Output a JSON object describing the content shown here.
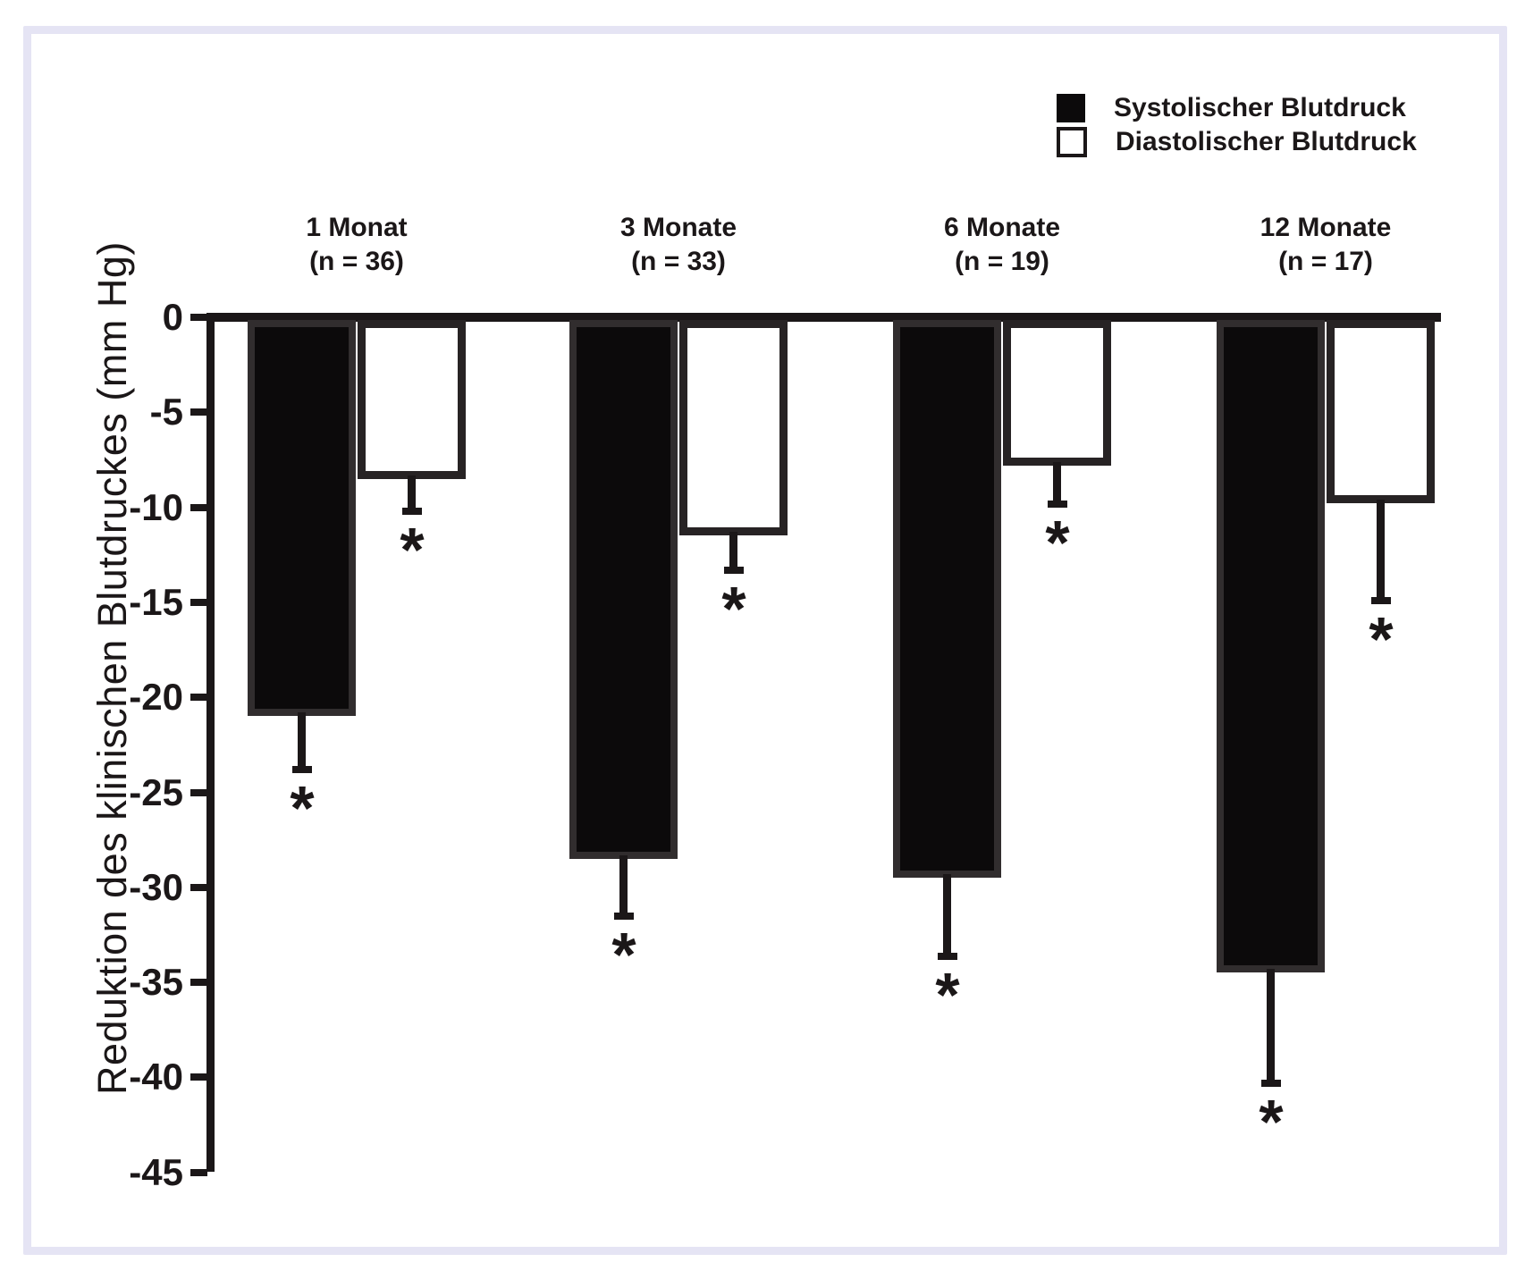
{
  "figure": {
    "ylabel": "Reduktion des klinischen Blutdruckes (mm Hg)",
    "legend": [
      {
        "label": "Systolischer Blutdruck",
        "swatch": "black"
      },
      {
        "label": "Diastolischer Blutdruck",
        "swatch": "white"
      }
    ]
  },
  "chart_data": {
    "type": "bar",
    "title": "",
    "ylabel": "Reduktion des klinischen Blutdruckes (mm Hg)",
    "xlabel": "",
    "ylim": [
      0,
      -45
    ],
    "yticks": [
      0,
      -5,
      -10,
      -15,
      -20,
      -25,
      -30,
      -35,
      -40,
      -45
    ],
    "grid": false,
    "legend_position": "top-right",
    "categories": [
      "1 Monat",
      "3 Monate",
      "6 Monate",
      "12 Monate"
    ],
    "category_sublabels": [
      "(n = 36)",
      "(n = 33)",
      "(n = 19)",
      "(n = 17)"
    ],
    "series": [
      {
        "name": "Systolischer Blutdruck",
        "fill": "#0c0a0b",
        "values": [
          -21,
          -28.5,
          -29.5,
          -34.5
        ],
        "error_to": [
          -24,
          -31.7,
          -33.8,
          -40.5
        ],
        "significance_markers": [
          "*",
          "*",
          "*",
          "*"
        ]
      },
      {
        "name": "Diastolischer Blutdruck",
        "fill": "#ffffff",
        "values": [
          -8.5,
          -11.5,
          -7.8,
          -9.8
        ],
        "error_to": [
          -10.4,
          -13.5,
          -10.0,
          -15.1
        ],
        "significance_markers": [
          "*",
          "*",
          "*",
          "*"
        ]
      }
    ]
  },
  "colors": {
    "frame_border": "#e5e4f4",
    "ink": "#1b1718",
    "background": "#ffffff"
  }
}
